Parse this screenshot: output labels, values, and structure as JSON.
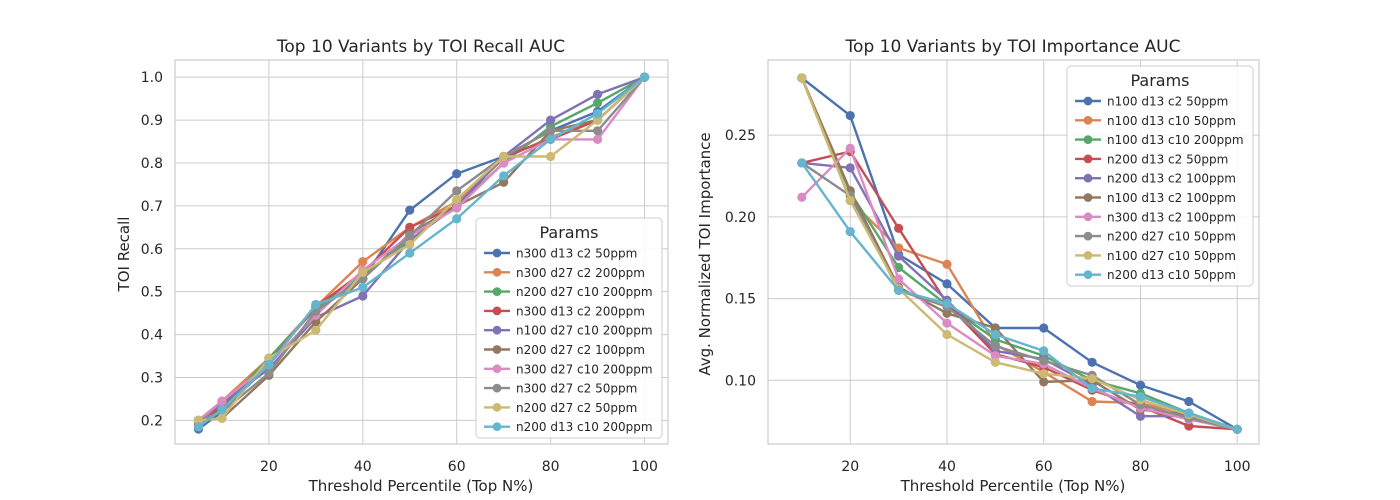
{
  "chart_data": [
    {
      "type": "line",
      "title": "Top 10 Variants by TOI Recall AUC",
      "xlabel": "Threshold Percentile (Top N%)",
      "ylabel": "TOI Recall",
      "xlim": [
        0,
        105
      ],
      "ylim": [
        0.145,
        1.04
      ],
      "xticks": [
        20,
        40,
        60,
        80,
        100
      ],
      "yticks": [
        0.2,
        0.3,
        0.4,
        0.5,
        0.6,
        0.7,
        0.8,
        0.9,
        1.0
      ],
      "ytick_labels": [
        "0.2",
        "0.3",
        "0.4",
        "0.5",
        "0.6",
        "0.7",
        "0.8",
        "0.9",
        "1.0"
      ],
      "grid": true,
      "legend_title": "Params",
      "legend_position": "lower-right",
      "x": [
        5,
        10,
        20,
        30,
        40,
        50,
        60,
        70,
        80,
        90,
        100
      ],
      "series": [
        {
          "name": "n300 d13 c2 50ppm",
          "color": "#4c72b0",
          "values": [
            0.18,
            0.22,
            0.33,
            0.47,
            0.53,
            0.69,
            0.775,
            0.815,
            0.875,
            0.92,
            1.0
          ]
        },
        {
          "name": "n300 d27 c2 200ppm",
          "color": "#dd8452",
          "values": [
            0.2,
            0.245,
            0.345,
            0.465,
            0.57,
            0.65,
            0.71,
            0.81,
            0.86,
            0.9,
            1.0
          ]
        },
        {
          "name": "n200 d27 c10 200ppm",
          "color": "#55a868",
          "values": [
            0.195,
            0.23,
            0.345,
            0.46,
            0.54,
            0.62,
            0.7,
            0.8,
            0.885,
            0.94,
            1.0
          ]
        },
        {
          "name": "n300 d13 c2 200ppm",
          "color": "#c44e52",
          "values": [
            0.19,
            0.235,
            0.335,
            0.465,
            0.545,
            0.65,
            0.7,
            0.815,
            0.855,
            0.9,
            1.0
          ]
        },
        {
          "name": "n100 d27 c10 200ppm",
          "color": "#8172b3",
          "values": [
            0.2,
            0.24,
            0.32,
            0.44,
            0.49,
            0.62,
            0.7,
            0.815,
            0.9,
            0.96,
            1.0
          ]
        },
        {
          "name": "n200 d27 c2 100ppm",
          "color": "#937860",
          "values": [
            0.2,
            0.205,
            0.305,
            0.43,
            0.53,
            0.635,
            0.7,
            0.755,
            0.875,
            0.9,
            1.0
          ]
        },
        {
          "name": "n300 d27 c10 200ppm",
          "color": "#da8bc3",
          "values": [
            0.2,
            0.245,
            0.33,
            0.445,
            0.55,
            0.63,
            0.695,
            0.8,
            0.855,
            0.855,
            1.0
          ]
        },
        {
          "name": "n300 d27 c2 50ppm",
          "color": "#8c8c8c",
          "values": [
            0.2,
            0.22,
            0.31,
            0.455,
            0.53,
            0.63,
            0.735,
            0.815,
            0.875,
            0.875,
            1.0
          ]
        },
        {
          "name": "n200 d27 c2 50ppm",
          "color": "#ccb974",
          "values": [
            0.2,
            0.205,
            0.345,
            0.41,
            0.545,
            0.61,
            0.715,
            0.815,
            0.815,
            0.9,
            1.0
          ]
        },
        {
          "name": "n200 d13 c10 200ppm",
          "color": "#64b5cd",
          "values": [
            0.185,
            0.225,
            0.33,
            0.47,
            0.51,
            0.59,
            0.67,
            0.77,
            0.855,
            0.915,
            1.0
          ]
        }
      ]
    },
    {
      "type": "line",
      "title": "Top 10 Variants by TOI Importance AUC",
      "xlabel": "Threshold Percentile (Top N%)",
      "ylabel": "Avg. Normalized TOI Importance",
      "xlim": [
        3,
        104.5
      ],
      "ylim": [
        0.061,
        0.296
      ],
      "xticks": [
        20,
        40,
        60,
        80,
        100
      ],
      "yticks": [
        0.1,
        0.15,
        0.2,
        0.25
      ],
      "ytick_labels": [
        "0.10",
        "0.15",
        "0.20",
        "0.25"
      ],
      "grid": true,
      "legend_title": "Params",
      "legend_position": "upper-right",
      "x": [
        10,
        20,
        30,
        40,
        50,
        60,
        70,
        80,
        90,
        100
      ],
      "series": [
        {
          "name": "n100 d13 c2 50ppm",
          "color": "#4c72b0",
          "values": [
            0.285,
            0.262,
            0.177,
            0.159,
            0.132,
            0.132,
            0.111,
            0.097,
            0.087,
            0.07
          ]
        },
        {
          "name": "n100 d13 c10 50ppm",
          "color": "#dd8452",
          "values": [
            0.285,
            0.21,
            0.181,
            0.171,
            0.122,
            0.105,
            0.087,
            0.086,
            0.079,
            0.07
          ]
        },
        {
          "name": "n100 d13 c10 200ppm",
          "color": "#55a868",
          "values": [
            0.285,
            0.215,
            0.169,
            0.146,
            0.125,
            0.115,
            0.1,
            0.092,
            0.08,
            0.07
          ]
        },
        {
          "name": "n200 d13 c2 50ppm",
          "color": "#c44e52",
          "values": [
            0.233,
            0.24,
            0.193,
            0.147,
            0.116,
            0.108,
            0.094,
            0.084,
            0.072,
            0.07
          ]
        },
        {
          "name": "n200 d13 c2 100ppm",
          "color": "#8172b3",
          "values": [
            0.233,
            0.23,
            0.176,
            0.149,
            0.118,
            0.113,
            0.097,
            0.078,
            0.078,
            0.07
          ]
        },
        {
          "name": "n100 d13 c2 100ppm",
          "color": "#937860",
          "values": [
            0.285,
            0.216,
            0.157,
            0.141,
            0.132,
            0.099,
            0.1,
            0.082,
            0.079,
            0.07
          ]
        },
        {
          "name": "n300 d13 c2 100ppm",
          "color": "#da8bc3",
          "values": [
            0.212,
            0.242,
            0.162,
            0.135,
            0.115,
            0.11,
            0.095,
            0.083,
            0.076,
            0.07
          ]
        },
        {
          "name": "n200 d27 c10 50ppm",
          "color": "#8c8c8c",
          "values": [
            0.233,
            0.213,
            0.155,
            0.145,
            0.121,
            0.112,
            0.103,
            0.085,
            0.077,
            0.07
          ]
        },
        {
          "name": "n100 d27 c10 50ppm",
          "color": "#ccb974",
          "values": [
            0.285,
            0.21,
            0.156,
            0.128,
            0.111,
            0.104,
            0.101,
            0.088,
            0.079,
            0.07
          ]
        },
        {
          "name": "n200 d13 c10 50ppm",
          "color": "#64b5cd",
          "values": [
            0.233,
            0.191,
            0.155,
            0.147,
            0.128,
            0.118,
            0.095,
            0.09,
            0.08,
            0.07
          ]
        }
      ]
    }
  ]
}
